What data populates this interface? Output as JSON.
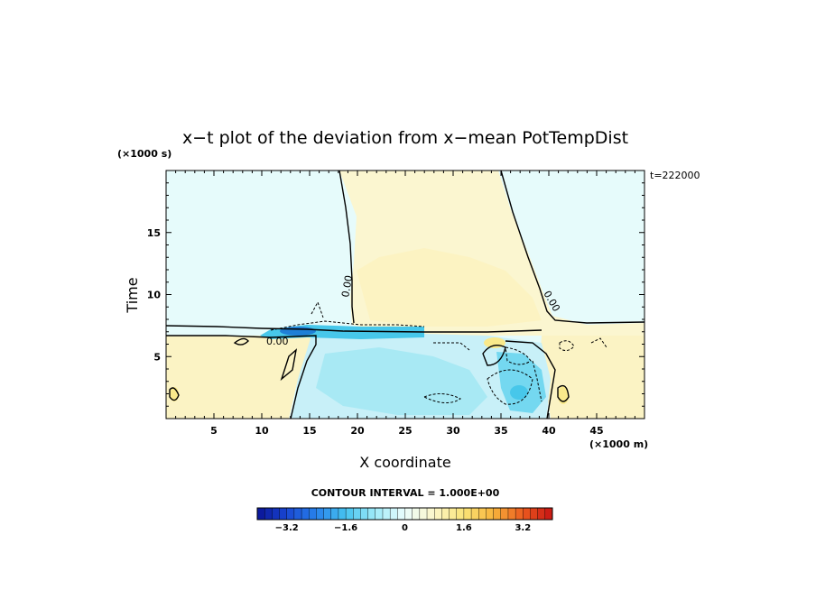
{
  "chart_data": {
    "type": "heatmap",
    "title": "x−t plot of the deviation from x−mean PotTempDist",
    "xlabel": "X coordinate",
    "ylabel": "Time",
    "x_unit": "(×1000 m)",
    "y_unit": "(×1000 s)",
    "time_annotation": "t=222000",
    "xlim": [
      0,
      50
    ],
    "ylim": [
      0,
      20
    ],
    "x_ticks": [
      "5",
      "10",
      "15",
      "20",
      "25",
      "30",
      "35",
      "40",
      "45"
    ],
    "y_ticks": [
      "5",
      "10",
      "15"
    ],
    "x_tick_values": [
      5,
      10,
      15,
      20,
      25,
      30,
      35,
      40,
      45
    ],
    "y_tick_values": [
      5,
      10,
      15
    ],
    "contour_labels": [
      "0.00",
      "0.00",
      "0.00"
    ],
    "contour_interval_text": "CONTOUR INTERVAL = 1.000E+00",
    "colorbar": {
      "min": -4,
      "max": 4,
      "step": 0.2,
      "tick_labels": [
        "−3.2",
        "−1.6",
        "0",
        "1.6",
        "3.2"
      ],
      "tick_values": [
        -3.2,
        -1.6,
        0,
        1.6,
        3.2
      ]
    },
    "colors": {
      "warm_light": "#fbf6d0",
      "warm_mid": "#f9e98b",
      "cool_light": "#e6fbfb",
      "cool_mid": "#a8e9f4",
      "cool_strong": "#47c7ea",
      "cool_dark": "#1f7fd6"
    }
  }
}
